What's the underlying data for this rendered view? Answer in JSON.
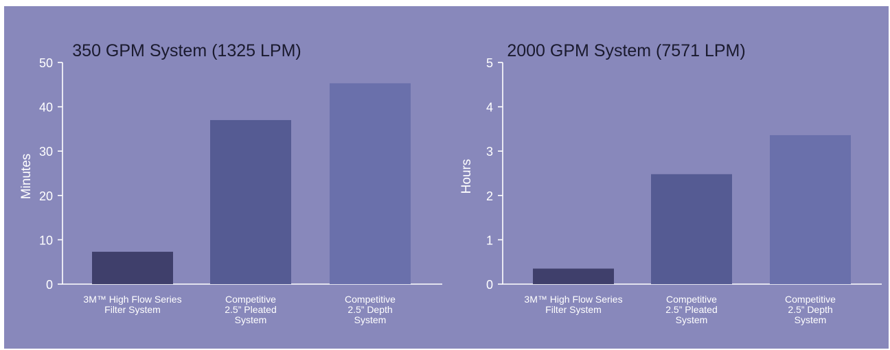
{
  "chart_data": [
    {
      "type": "bar",
      "title": "350 GPM System (1325 LPM)",
      "ylabel": "Minutes",
      "ylim": [
        0,
        50
      ],
      "yticks": [
        0,
        10,
        20,
        30,
        40,
        50
      ],
      "categories": [
        [
          "3M™ High Flow Series",
          "Filter System"
        ],
        [
          "Competitive",
          "2.5” Pleated",
          "System"
        ],
        [
          "Competitive",
          "2.5” Depth",
          "System"
        ]
      ],
      "values": [
        7.3,
        37,
        45.3
      ],
      "colors": [
        "#3f3f6b",
        "#555b93",
        "#6a70ab"
      ]
    },
    {
      "type": "bar",
      "title": "2000 GPM System (7571 LPM)",
      "ylabel": "Hours",
      "ylim": [
        0,
        5
      ],
      "yticks": [
        0,
        1,
        2,
        3,
        4,
        5
      ],
      "categories": [
        [
          "3M™ High Flow Series",
          "Filter System"
        ],
        [
          "Competitive",
          "2.5” Pleated",
          "System"
        ],
        [
          "Competitive",
          "2.5” Depth",
          "System"
        ]
      ],
      "values": [
        0.35,
        2.48,
        3.36
      ],
      "colors": [
        "#3f3f6b",
        "#555b93",
        "#6a70ab"
      ]
    }
  ]
}
